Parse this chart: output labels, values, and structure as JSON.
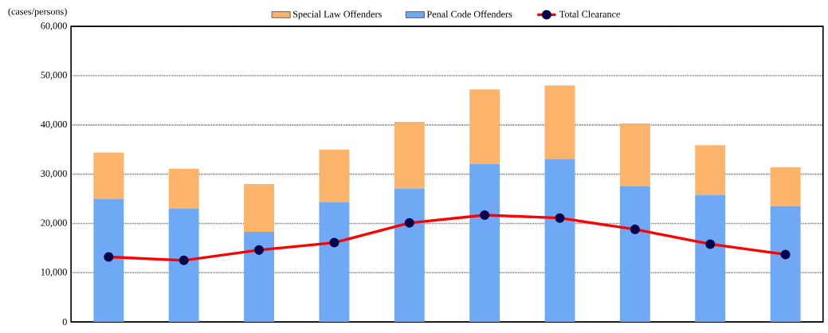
{
  "chart_data": {
    "type": "bar",
    "stacked": true,
    "ylabel": "(cases/persons)",
    "categories": [
      null,
      null,
      null,
      null,
      null,
      null,
      null,
      null,
      null,
      null
    ],
    "series": [
      {
        "name": "Penal Code Offenders",
        "color": "#6fa8f5",
        "values": [
          25000,
          23000,
          18300,
          24300,
          27100,
          32100,
          33100,
          27500,
          25800,
          23500
        ]
      },
      {
        "name": "Special Law Offenders",
        "color": "#fbb46a",
        "values": [
          9400,
          8100,
          9700,
          10700,
          13500,
          15100,
          14900,
          12800,
          10100,
          7900
        ]
      },
      {
        "name": "Total Clearance",
        "type": "line",
        "color": "#ff0000",
        "values": [
          13200,
          12500,
          14600,
          16100,
          20100,
          21700,
          21100,
          18800,
          15800,
          13700
        ]
      }
    ],
    "ylim": [
      0,
      60000
    ],
    "yticks": [
      {
        "value": 0,
        "label": "0"
      },
      {
        "value": 10000,
        "label": "10,000"
      },
      {
        "value": 20000,
        "label": "20,000"
      },
      {
        "value": 30000,
        "label": "30,000"
      },
      {
        "value": 40000,
        "label": "40,000"
      },
      {
        "value": 50000,
        "label": "50,000"
      },
      {
        "value": 60000,
        "label": "60,000"
      }
    ],
    "grid": "y",
    "legend": "top",
    "marker": "circle",
    "line_style": "solid"
  }
}
